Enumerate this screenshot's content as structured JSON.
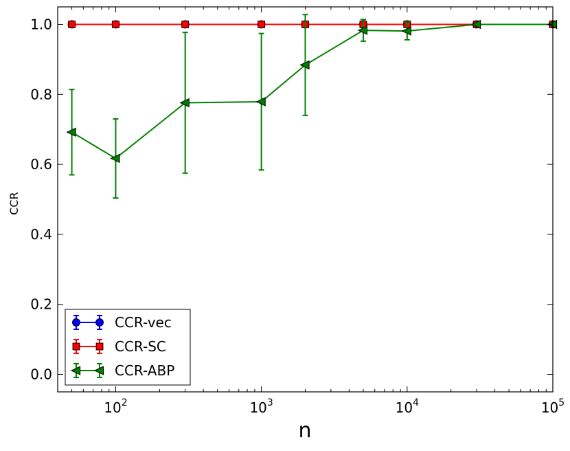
{
  "chart_data": {
    "type": "line",
    "xlabel": "n",
    "ylabel": "CCR",
    "xscale": "log",
    "xlim": [
      40,
      100000
    ],
    "ylim": [
      -0.05,
      1.05
    ],
    "yticks": [
      0.0,
      0.2,
      0.4,
      0.6,
      0.8,
      1.0
    ],
    "ytick_labels": [
      "0.0",
      "0.2",
      "0.4",
      "0.6",
      "0.8",
      "1.0"
    ],
    "xticks": [
      100,
      1000,
      10000,
      100000
    ],
    "xtick_labels": [
      {
        "base": "10",
        "exp": "2"
      },
      {
        "base": "10",
        "exp": "3"
      },
      {
        "base": "10",
        "exp": "4"
      },
      {
        "base": "10",
        "exp": "5"
      }
    ],
    "grid": false,
    "legend_position": "lower-left",
    "series": [
      {
        "name": "CCR-vec",
        "color": "#0000ff",
        "marker": "circle",
        "x": [
          50,
          100,
          300,
          1000,
          2000,
          5000,
          10000,
          30000,
          100000
        ],
        "y": [
          1.0,
          1.0,
          1.0,
          1.0,
          1.0,
          1.0,
          1.0,
          1.0,
          1.0
        ],
        "yerr": [
          0,
          0,
          0,
          0,
          0,
          0,
          0,
          0,
          0
        ]
      },
      {
        "name": "CCR-SC",
        "color": "#ff0000",
        "marker": "square",
        "x": [
          50,
          100,
          300,
          1000,
          2000,
          5000,
          10000,
          30000,
          100000
        ],
        "y": [
          1.0,
          1.0,
          1.0,
          1.0,
          1.0,
          1.0,
          1.0,
          1.0,
          1.0
        ],
        "yerr": [
          0,
          0,
          0,
          0,
          0,
          0,
          0,
          0,
          0
        ]
      },
      {
        "name": "CCR-ABP",
        "color": "#008000",
        "marker": "triangle-left",
        "x": [
          50,
          100,
          300,
          1000,
          2000,
          5000,
          10000,
          30000,
          100000
        ],
        "y": [
          0.692,
          0.617,
          0.776,
          0.779,
          0.884,
          0.983,
          0.981,
          1.0,
          1.0
        ],
        "yerr": [
          0.122,
          0.113,
          0.201,
          0.195,
          0.144,
          0.031,
          0.025,
          0.0,
          0.0
        ]
      }
    ]
  }
}
